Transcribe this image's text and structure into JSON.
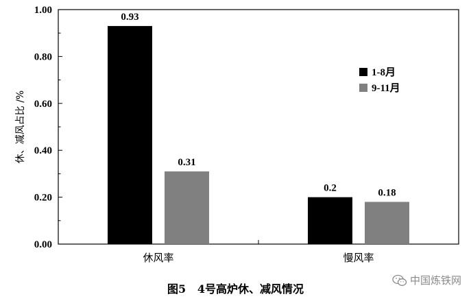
{
  "chart_data": {
    "type": "bar",
    "categories": [
      "休风率",
      "慢风率"
    ],
    "series": [
      {
        "name": "1-8月",
        "values": [
          0.93,
          0.2
        ],
        "color": "#000000",
        "labels": [
          "0.93",
          "0.2"
        ]
      },
      {
        "name": "9-11月",
        "values": [
          0.31,
          0.18
        ],
        "color": "#808080",
        "labels": [
          "0.31",
          "0.18"
        ]
      }
    ],
    "ylabel": "休、减风占比 /%",
    "ylim": [
      0,
      1.0
    ],
    "yticks": [
      "0.00",
      "0.20",
      "0.40",
      "0.60",
      "0.80",
      "1.00"
    ],
    "ytick_values": [
      0,
      0.2,
      0.4,
      0.6,
      0.8,
      1.0
    ],
    "grid": false,
    "legend": "right"
  },
  "caption": "图5   4号高炉休、减风情况",
  "watermark": {
    "text": "中国炼铁网",
    "icon": "wechat-icon"
  }
}
